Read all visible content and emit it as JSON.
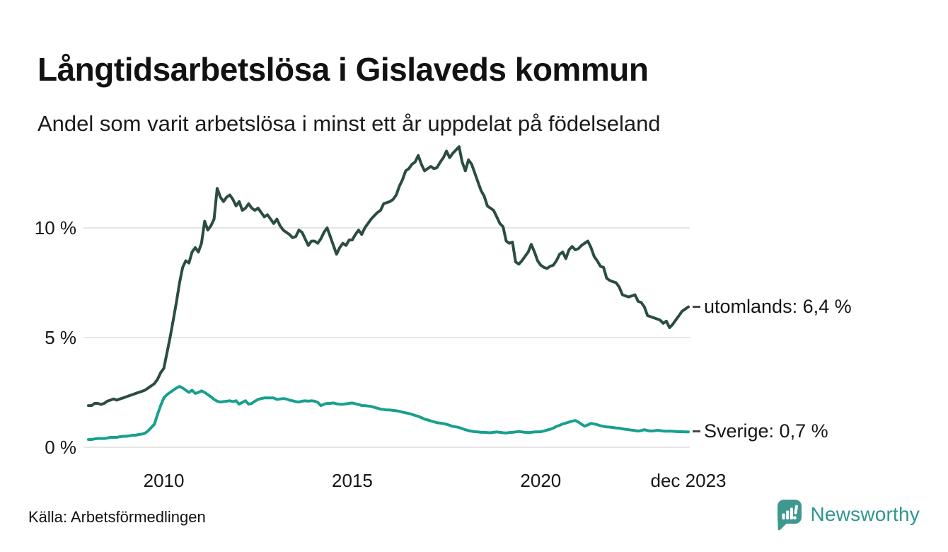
{
  "header": {
    "title": "Långtidsarbetslösa i Gislaveds kommun",
    "subtitle": "Andel som varit arbetslösa i minst ett år uppdelat på födelseland"
  },
  "footer": {
    "source": "Källa: Arbetsförmedlingen",
    "branding": {
      "name": "Newsworthy",
      "icon": "newsworthy-pin-barchart-icon",
      "color": "#3f988f"
    }
  },
  "colors": {
    "utomlands_line": "#2b4c43",
    "sverige_line": "#18a08e",
    "gridline": "#e6e6e6",
    "text": "#161616",
    "end_label_dash": "#4a4a4a"
  },
  "chart_data": {
    "type": "line",
    "x_unit": "monthly",
    "x_domain_years": [
      2008.0,
      2023.9167
    ],
    "x_ticks": [
      {
        "label": "2010",
        "year": 2010.0
      },
      {
        "label": "2015",
        "year": 2015.0
      },
      {
        "label": "2020",
        "year": 2020.0
      },
      {
        "label": "dec 2023",
        "year": 2023.9167
      }
    ],
    "y_ticks": [
      {
        "label": "0 %",
        "value": 0
      },
      {
        "label": "5 %",
        "value": 5
      },
      {
        "label": "10 %",
        "value": 10
      }
    ],
    "ylim": [
      0,
      14.2
    ],
    "grid": "horizontal",
    "legend_position": "end-of-line-labels",
    "series": [
      {
        "name": "utomlands",
        "end_label": "utomlands: 6,4 %",
        "last_value": 6.4,
        "color": "#2b4c43",
        "values": [
          1.9,
          1.9,
          2.0,
          2.0,
          1.95,
          2.0,
          2.1,
          2.15,
          2.2,
          2.15,
          2.2,
          2.25,
          2.3,
          2.35,
          2.4,
          2.45,
          2.5,
          2.55,
          2.6,
          2.7,
          2.8,
          2.9,
          3.1,
          3.4,
          3.6,
          4.3,
          5.0,
          5.8,
          6.6,
          7.5,
          8.2,
          8.5,
          8.4,
          8.9,
          9.1,
          8.9,
          9.3,
          10.3,
          9.9,
          10.1,
          10.4,
          11.8,
          11.4,
          11.2,
          11.4,
          11.5,
          11.3,
          11.0,
          11.2,
          10.8,
          10.9,
          11.1,
          10.9,
          10.8,
          10.9,
          10.7,
          10.5,
          10.6,
          10.4,
          10.2,
          10.4,
          10.1,
          9.9,
          9.8,
          9.7,
          9.55,
          9.6,
          9.9,
          9.8,
          9.5,
          9.2,
          9.4,
          9.4,
          9.3,
          9.5,
          9.8,
          10.0,
          9.6,
          9.2,
          8.8,
          9.1,
          9.3,
          9.2,
          9.45,
          9.45,
          9.7,
          9.9,
          9.7,
          10.0,
          10.2,
          10.4,
          10.55,
          10.7,
          10.8,
          11.1,
          11.15,
          11.2,
          11.3,
          11.5,
          11.9,
          12.2,
          12.6,
          12.7,
          12.9,
          13.0,
          13.3,
          12.9,
          12.6,
          12.7,
          12.8,
          12.7,
          12.75,
          13.0,
          13.2,
          13.5,
          13.2,
          13.4,
          13.55,
          13.7,
          13.0,
          12.6,
          13.1,
          12.9,
          12.5,
          12.1,
          11.7,
          11.45,
          11.0,
          10.9,
          10.8,
          10.5,
          10.2,
          10.05,
          9.4,
          9.3,
          9.35,
          8.45,
          8.35,
          8.5,
          8.7,
          8.9,
          9.25,
          8.9,
          8.5,
          8.3,
          8.2,
          8.15,
          8.25,
          8.3,
          8.5,
          8.8,
          8.9,
          8.6,
          9.0,
          9.15,
          9.0,
          9.05,
          9.2,
          9.3,
          9.4,
          9.1,
          8.7,
          8.5,
          8.25,
          8.2,
          7.7,
          7.6,
          7.55,
          7.5,
          7.3,
          6.95,
          6.9,
          6.85,
          6.9,
          6.95,
          6.65,
          6.6,
          6.4,
          6.0,
          5.95,
          5.9,
          5.85,
          5.8,
          5.65,
          5.75,
          5.45,
          5.6,
          5.8,
          6.0,
          6.2,
          6.3,
          6.4
        ]
      },
      {
        "name": "Sverige",
        "end_label": "Sverige: 0,7 %",
        "last_value": 0.7,
        "color": "#18a08e",
        "values": [
          0.35,
          0.35,
          0.38,
          0.4,
          0.4,
          0.4,
          0.42,
          0.45,
          0.45,
          0.45,
          0.48,
          0.5,
          0.5,
          0.52,
          0.55,
          0.55,
          0.58,
          0.6,
          0.64,
          0.75,
          0.9,
          1.05,
          1.5,
          1.9,
          2.25,
          2.4,
          2.5,
          2.6,
          2.7,
          2.77,
          2.7,
          2.6,
          2.5,
          2.6,
          2.45,
          2.5,
          2.57,
          2.5,
          2.4,
          2.3,
          2.18,
          2.1,
          2.06,
          2.08,
          2.1,
          2.12,
          2.08,
          2.12,
          1.96,
          2.05,
          2.12,
          1.96,
          2.0,
          2.1,
          2.18,
          2.22,
          2.25,
          2.25,
          2.25,
          2.25,
          2.18,
          2.2,
          2.22,
          2.2,
          2.15,
          2.12,
          2.08,
          2.06,
          2.1,
          2.12,
          2.1,
          2.12,
          2.1,
          2.05,
          1.9,
          1.96,
          2.0,
          2.0,
          2.02,
          1.98,
          1.96,
          1.96,
          1.98,
          2.0,
          2.02,
          1.98,
          1.95,
          1.9,
          1.9,
          1.88,
          1.86,
          1.82,
          1.78,
          1.74,
          1.72,
          1.7,
          1.7,
          1.68,
          1.66,
          1.64,
          1.6,
          1.57,
          1.54,
          1.5,
          1.45,
          1.41,
          1.35,
          1.28,
          1.25,
          1.2,
          1.16,
          1.12,
          1.1,
          1.08,
          1.05,
          1.0,
          0.95,
          0.93,
          0.9,
          0.85,
          0.8,
          0.76,
          0.73,
          0.71,
          0.7,
          0.68,
          0.68,
          0.67,
          0.66,
          0.68,
          0.7,
          0.68,
          0.66,
          0.65,
          0.67,
          0.68,
          0.7,
          0.72,
          0.7,
          0.68,
          0.67,
          0.68,
          0.7,
          0.7,
          0.71,
          0.74,
          0.78,
          0.82,
          0.87,
          0.95,
          1.0,
          1.06,
          1.1,
          1.15,
          1.19,
          1.22,
          1.15,
          1.05,
          0.96,
          1.02,
          1.09,
          1.06,
          1.03,
          0.98,
          0.95,
          0.93,
          0.92,
          0.9,
          0.88,
          0.87,
          0.84,
          0.82,
          0.8,
          0.78,
          0.76,
          0.74,
          0.76,
          0.8,
          0.76,
          0.74,
          0.75,
          0.77,
          0.76,
          0.74,
          0.73,
          0.74,
          0.73,
          0.72,
          0.71,
          0.71,
          0.7,
          0.7
        ]
      }
    ]
  }
}
